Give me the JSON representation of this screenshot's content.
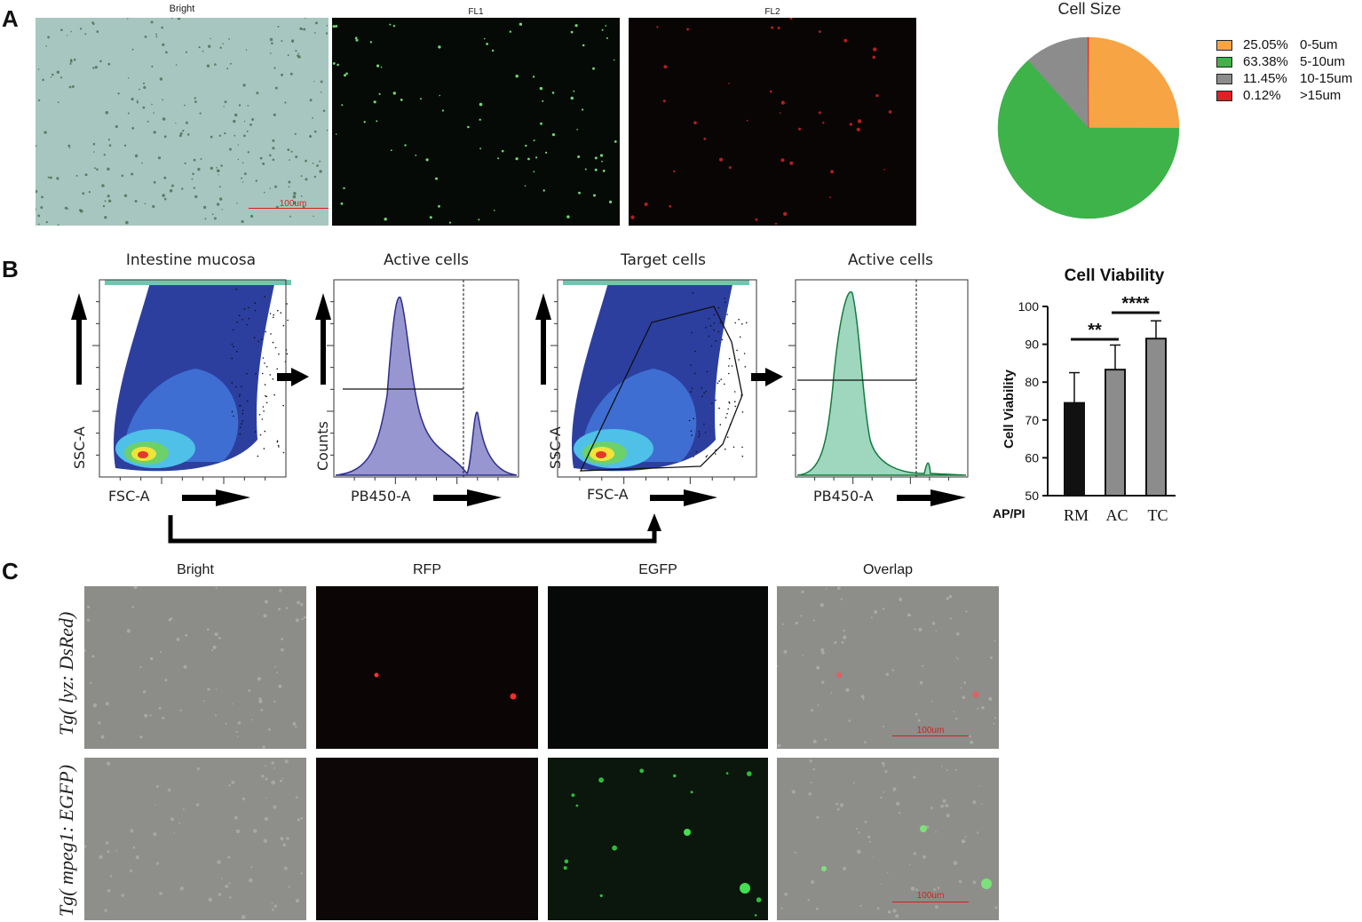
{
  "panel_labels": {
    "a": "A",
    "b": "B",
    "c": "C"
  },
  "panel_a": {
    "images": [
      {
        "title": "Bright",
        "scale_bar": "100um"
      },
      {
        "title": "FL1"
      },
      {
        "title": "FL2"
      }
    ]
  },
  "panel_b": {
    "plots": [
      {
        "title": "Intestine mucosa",
        "xlabel": "FSC-A",
        "ylabel": "SSC-A"
      },
      {
        "title": "Active cells",
        "xlabel": "PB450-A",
        "ylabel": "Counts"
      },
      {
        "title": "Target cells",
        "xlabel": "FSC-A",
        "ylabel": "SSC-A"
      },
      {
        "title": "Active cells",
        "xlabel": "PB450-A",
        "ylabel": ""
      }
    ]
  },
  "panel_c": {
    "column_titles": [
      "Bright",
      "RFP",
      "EGFP",
      "Overlap"
    ],
    "row_labels": [
      "Tg( lyz: DsRed)",
      "Tg( mpeg1: EGFP)"
    ],
    "scale_bar": "100um"
  },
  "chart_data": [
    {
      "type": "pie",
      "title": "Cell Size",
      "categories": [
        "0-5um",
        "5-10um",
        "10-15um",
        ">15um"
      ],
      "values": [
        25.05,
        63.38,
        11.45,
        0.12
      ],
      "value_labels": [
        "25.05%",
        "63.38%",
        "11.45%",
        "0.12%"
      ],
      "colors": [
        "#f7a444",
        "#3db34a",
        "#8c8c8c",
        "#e31e24"
      ],
      "legend_position": "right"
    },
    {
      "type": "bar",
      "title": "Cell Viability",
      "ylabel": "Cell Viability",
      "xlabel_prefix": "AP/PI",
      "categories": [
        "RM",
        "AC",
        "TC"
      ],
      "values": [
        74.5,
        83.3,
        91.5
      ],
      "errors": [
        8.0,
        6.5,
        4.7
      ],
      "colors": [
        "#111111",
        "#8c8c8c",
        "#8c8c8c"
      ],
      "ylim": [
        50,
        100
      ],
      "yticks": [
        50,
        60,
        70,
        80,
        90,
        100
      ],
      "significance": [
        {
          "from": "RM",
          "to": "AC",
          "label": "**"
        },
        {
          "from": "AC",
          "to": "TC",
          "label": "****"
        }
      ]
    }
  ]
}
